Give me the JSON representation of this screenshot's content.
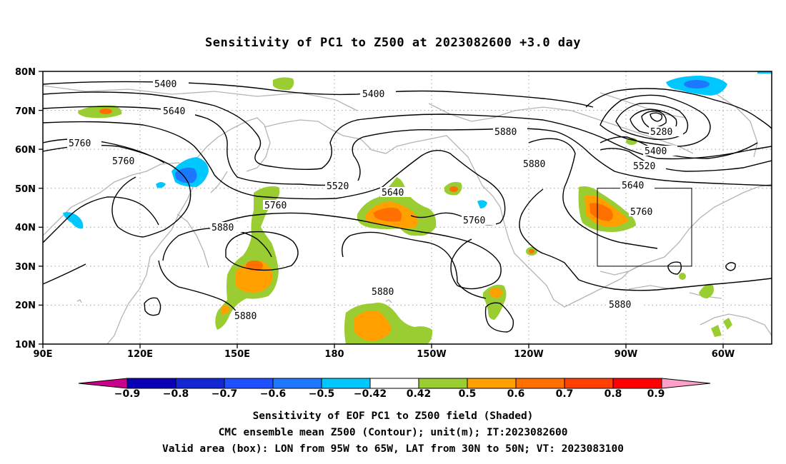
{
  "title": "Sensitivity of PC1 to Z500 at 2023082600 +3.0 day",
  "lat_labels": [
    "80N",
    "70N",
    "60N",
    "50N",
    "40N",
    "30N",
    "20N",
    "10N"
  ],
  "lon_labels": [
    "90E",
    "120E",
    "150E",
    "180",
    "150W",
    "120W",
    "90W",
    "60W"
  ],
  "contour_labels": [
    "5400",
    "5400",
    "5640",
    "5760",
    "5760",
    "5520",
    "5640",
    "5760",
    "5760",
    "5880",
    "5880",
    "5880",
    "5880",
    "5880",
    "5640",
    "5760",
    "5280",
    "5400",
    "5520",
    "5880"
  ],
  "colorbar": {
    "ticks": [
      "−0.9",
      "−0.8",
      "−0.7",
      "−0.6",
      "−0.5",
      "−0.42",
      "0.42",
      "0.5",
      "0.6",
      "0.7",
      "0.8",
      "0.9"
    ],
    "colors": [
      "#c8008c",
      "#0a00b4",
      "#1428d2",
      "#1e50ff",
      "#1e78ff",
      "#00c8ff",
      "#ffffff",
      "#9acd32",
      "#ffa000",
      "#ff7000",
      "#ff4000",
      "#ff0000",
      "#ffa0c8"
    ]
  },
  "captions": [
    "Sensitivity of EOF PC1 to Z500 field (Shaded)",
    "CMC ensemble mean Z500 (Contour); unit(m); IT:2023082600",
    "Valid area (box): LON from 95W to 65W, LAT from 30N to 50N; VT: 2023083100"
  ]
}
